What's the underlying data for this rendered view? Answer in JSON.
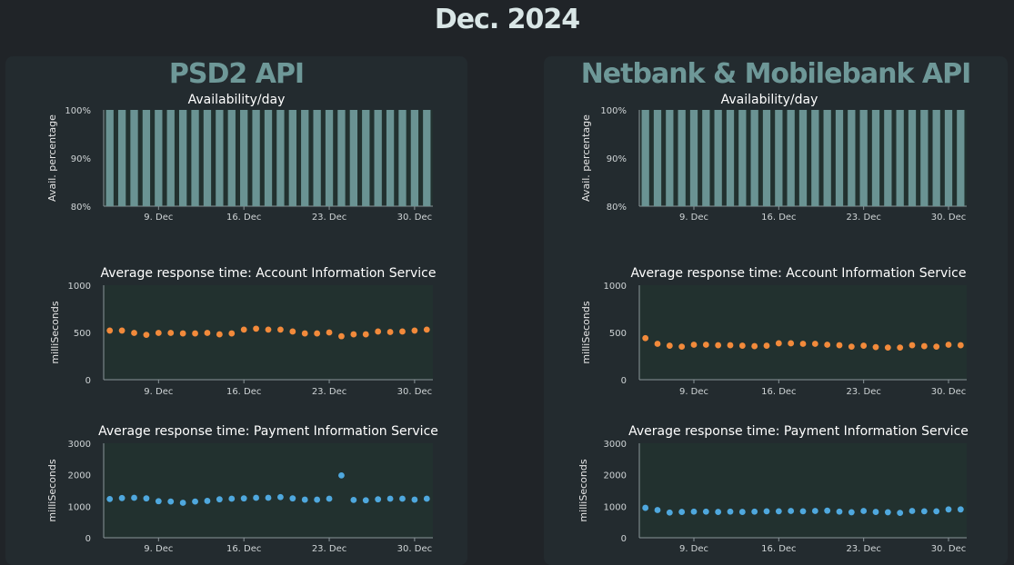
{
  "title": "Dec. 2024",
  "colors": {
    "bar": "#6a9393",
    "orange": "#f28a3b",
    "blue": "#4fa8de"
  },
  "panels": [
    {
      "title": "PSD2 API",
      "charts": [
        {
          "type": "bar",
          "title": "Availability/day",
          "ylabel": "Avail. percentage",
          "ylim": [
            80,
            100
          ],
          "yticks": [
            "80%",
            "90%",
            "100%"
          ],
          "xticks": [
            {
              "day": 9,
              "label": "9. Dec"
            },
            {
              "day": 16,
              "label": "16. Dec"
            },
            {
              "day": 23,
              "label": "23. Dec"
            },
            {
              "day": 30,
              "label": "30. Dec"
            }
          ],
          "x": [
            5,
            6,
            7,
            8,
            9,
            10,
            11,
            12,
            13,
            14,
            15,
            16,
            17,
            18,
            19,
            20,
            21,
            22,
            23,
            24,
            25,
            26,
            27,
            28,
            29,
            30,
            31
          ],
          "values": [
            100,
            100,
            100,
            100,
            100,
            100,
            100,
            100,
            100,
            100,
            100,
            100,
            100,
            100,
            100,
            100,
            100,
            100,
            100,
            100,
            100,
            100,
            100,
            100,
            100,
            100,
            100
          ]
        },
        {
          "type": "scatter",
          "title": "Average response time: Account Information Service",
          "ylabel": "milliSeconds",
          "color": "orange",
          "ylim": [
            0,
            1000
          ],
          "yticks": [
            "0",
            "500",
            "1000"
          ],
          "xticks": [
            {
              "day": 9,
              "label": "9. Dec"
            },
            {
              "day": 16,
              "label": "16. Dec"
            },
            {
              "day": 23,
              "label": "23. Dec"
            },
            {
              "day": 30,
              "label": "30. Dec"
            }
          ],
          "x": [
            5,
            6,
            7,
            8,
            9,
            10,
            11,
            12,
            13,
            14,
            15,
            16,
            17,
            18,
            19,
            20,
            21,
            22,
            23,
            24,
            25,
            26,
            27,
            28,
            29,
            30,
            31
          ],
          "values": [
            520,
            520,
            495,
            475,
            495,
            495,
            490,
            490,
            495,
            480,
            490,
            530,
            540,
            530,
            530,
            510,
            490,
            490,
            500,
            460,
            480,
            480,
            510,
            505,
            510,
            520,
            530
          ]
        },
        {
          "type": "scatter",
          "title": "Average response time: Payment Information Service",
          "ylabel": "milliSeconds",
          "color": "blue",
          "ylim": [
            0,
            3000
          ],
          "yticks": [
            "0",
            "1000",
            "2000",
            "3000"
          ],
          "xticks": [
            {
              "day": 9,
              "label": "9. Dec"
            },
            {
              "day": 16,
              "label": "16. Dec"
            },
            {
              "day": 23,
              "label": "23. Dec"
            },
            {
              "day": 30,
              "label": "30. Dec"
            }
          ],
          "x": [
            5,
            6,
            7,
            8,
            9,
            10,
            11,
            12,
            13,
            14,
            15,
            16,
            17,
            18,
            19,
            20,
            21,
            22,
            23,
            24,
            25,
            26,
            27,
            28,
            29,
            30,
            31
          ],
          "values": [
            1230,
            1260,
            1270,
            1250,
            1160,
            1150,
            1110,
            1150,
            1170,
            1220,
            1240,
            1250,
            1270,
            1270,
            1290,
            1250,
            1210,
            1210,
            1240,
            1980,
            1200,
            1190,
            1220,
            1240,
            1240,
            1210,
            1240
          ]
        }
      ]
    },
    {
      "title": "Netbank & Mobilebank API",
      "charts": [
        {
          "type": "bar",
          "title": "Availability/day",
          "ylabel": "Avail. percentage",
          "ylim": [
            80,
            100
          ],
          "yticks": [
            "80%",
            "90%",
            "100%"
          ],
          "xticks": [
            {
              "day": 9,
              "label": "9. Dec"
            },
            {
              "day": 16,
              "label": "16. Dec"
            },
            {
              "day": 23,
              "label": "23. Dec"
            },
            {
              "day": 30,
              "label": "30. Dec"
            }
          ],
          "x": [
            5,
            6,
            7,
            8,
            9,
            10,
            11,
            12,
            13,
            14,
            15,
            16,
            17,
            18,
            19,
            20,
            21,
            22,
            23,
            24,
            25,
            26,
            27,
            28,
            29,
            30,
            31
          ],
          "values": [
            100,
            100,
            100,
            100,
            100,
            100,
            100,
            100,
            100,
            100,
            100,
            100,
            100,
            100,
            100,
            100,
            100,
            100,
            100,
            100,
            100,
            100,
            100,
            100,
            100,
            100,
            100
          ]
        },
        {
          "type": "scatter",
          "title": "Average response time: Account Information Service",
          "ylabel": "milliSeconds",
          "color": "orange",
          "ylim": [
            0,
            1000
          ],
          "yticks": [
            "0",
            "500",
            "1000"
          ],
          "xticks": [
            {
              "day": 9,
              "label": "9. Dec"
            },
            {
              "day": 16,
              "label": "16. Dec"
            },
            {
              "day": 23,
              "label": "23. Dec"
            },
            {
              "day": 30,
              "label": "30. Dec"
            }
          ],
          "x": [
            5,
            6,
            7,
            8,
            9,
            10,
            11,
            12,
            13,
            14,
            15,
            16,
            17,
            18,
            19,
            20,
            21,
            22,
            23,
            24,
            25,
            26,
            27,
            28,
            29,
            30,
            31
          ],
          "values": [
            440,
            380,
            360,
            350,
            370,
            370,
            365,
            365,
            360,
            355,
            360,
            385,
            385,
            380,
            380,
            370,
            365,
            350,
            360,
            345,
            340,
            340,
            365,
            355,
            350,
            370,
            365
          ]
        },
        {
          "type": "scatter",
          "title": "Average response time: Payment Information Service",
          "ylabel": "milliSeconds",
          "color": "blue",
          "ylim": [
            0,
            3000
          ],
          "yticks": [
            "0",
            "1000",
            "2000",
            "3000"
          ],
          "xticks": [
            {
              "day": 9,
              "label": "9. Dec"
            },
            {
              "day": 16,
              "label": "16. Dec"
            },
            {
              "day": 23,
              "label": "23. Dec"
            },
            {
              "day": 30,
              "label": "30. Dec"
            }
          ],
          "x": [
            5,
            6,
            7,
            8,
            9,
            10,
            11,
            12,
            13,
            14,
            15,
            16,
            17,
            18,
            19,
            20,
            21,
            22,
            23,
            24,
            25,
            26,
            27,
            28,
            29,
            30,
            31
          ],
          "values": [
            950,
            880,
            800,
            820,
            830,
            830,
            820,
            830,
            820,
            830,
            840,
            840,
            850,
            840,
            850,
            860,
            830,
            810,
            850,
            820,
            810,
            790,
            850,
            840,
            840,
            900,
            900
          ]
        }
      ]
    }
  ]
}
